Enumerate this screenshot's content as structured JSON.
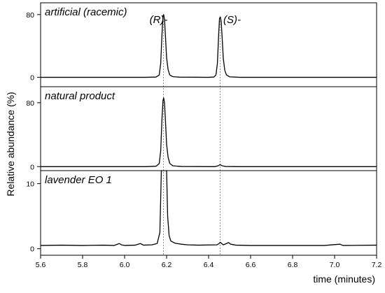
{
  "chart_data": {
    "type": "line",
    "x_label": "time (minutes)",
    "y_label": "Relative abundance (%)",
    "x_range": [
      5.6,
      7.2
    ],
    "x_ticks": [
      "5.6",
      "5.8",
      "6.0",
      "6.2",
      "6.4",
      "6.6",
      "6.8",
      "7.0",
      "7.2"
    ],
    "x_tick_values": [
      5.6,
      5.8,
      6.0,
      6.2,
      6.4,
      6.6,
      6.8,
      7.0,
      7.2
    ],
    "peak_labels": [
      {
        "text": "(R)-",
        "retention_time": 6.185
      },
      {
        "text": "(S)-",
        "retention_time": 6.455
      }
    ],
    "panels": [
      {
        "title": "artificial (racemic)",
        "y_range": [
          -12,
          95
        ],
        "y_ticks": [
          0,
          80
        ],
        "y_tick_labels": [
          "0",
          "80"
        ],
        "trace": [
          [
            5.6,
            0
          ],
          [
            6.1,
            0
          ],
          [
            6.15,
            0.3
          ],
          [
            6.165,
            3
          ],
          [
            6.172,
            18
          ],
          [
            6.178,
            55
          ],
          [
            6.183,
            78
          ],
          [
            6.186,
            80
          ],
          [
            6.19,
            74
          ],
          [
            6.195,
            50
          ],
          [
            6.2,
            25
          ],
          [
            6.207,
            10
          ],
          [
            6.215,
            3
          ],
          [
            6.23,
            0.8
          ],
          [
            6.26,
            0.2
          ],
          [
            6.4,
            0
          ],
          [
            6.425,
            0.3
          ],
          [
            6.435,
            3
          ],
          [
            6.442,
            18
          ],
          [
            6.448,
            55
          ],
          [
            6.452,
            75
          ],
          [
            6.456,
            77
          ],
          [
            6.46,
            71
          ],
          [
            6.465,
            48
          ],
          [
            6.47,
            24
          ],
          [
            6.477,
            9
          ],
          [
            6.485,
            3
          ],
          [
            6.5,
            0.6
          ],
          [
            6.55,
            0
          ],
          [
            7.2,
            0
          ]
        ]
      },
      {
        "title": "natural product",
        "y_range": [
          -5,
          100
        ],
        "y_ticks": [
          0,
          80
        ],
        "y_tick_labels": [
          "0",
          "80"
        ],
        "trace": [
          [
            5.6,
            0
          ],
          [
            6.1,
            0
          ],
          [
            6.15,
            0.5
          ],
          [
            6.165,
            4
          ],
          [
            6.172,
            20
          ],
          [
            6.178,
            60
          ],
          [
            6.183,
            83
          ],
          [
            6.186,
            86
          ],
          [
            6.19,
            80
          ],
          [
            6.195,
            55
          ],
          [
            6.2,
            28
          ],
          [
            6.207,
            12
          ],
          [
            6.215,
            4
          ],
          [
            6.23,
            1
          ],
          [
            6.27,
            0.2
          ],
          [
            6.43,
            0
          ],
          [
            6.445,
            1
          ],
          [
            6.455,
            2.5
          ],
          [
            6.465,
            1
          ],
          [
            6.48,
            0.2
          ],
          [
            6.55,
            0
          ],
          [
            7.2,
            0
          ]
        ]
      },
      {
        "title": "lavender EO 1",
        "y_range": [
          -1,
          12
        ],
        "y_ticks": [
          0,
          10
        ],
        "y_tick_labels": [
          "0",
          "10"
        ],
        "trace": [
          [
            5.6,
            0.5
          ],
          [
            5.7,
            0.55
          ],
          [
            5.8,
            0.5
          ],
          [
            5.9,
            0.55
          ],
          [
            5.95,
            0.5
          ],
          [
            5.975,
            0.8
          ],
          [
            5.985,
            0.6
          ],
          [
            6.0,
            0.5
          ],
          [
            6.05,
            0.55
          ],
          [
            6.075,
            0.8
          ],
          [
            6.09,
            0.55
          ],
          [
            6.13,
            0.6
          ],
          [
            6.155,
            0.8
          ],
          [
            6.168,
            2.5
          ],
          [
            6.175,
            12
          ],
          [
            6.2,
            12
          ],
          [
            6.205,
            5
          ],
          [
            6.212,
            2
          ],
          [
            6.22,
            1.2
          ],
          [
            6.24,
            0.85
          ],
          [
            6.27,
            0.7
          ],
          [
            6.3,
            0.6
          ],
          [
            6.35,
            0.55
          ],
          [
            6.44,
            0.6
          ],
          [
            6.45,
            0.8
          ],
          [
            6.455,
            1
          ],
          [
            6.46,
            0.85
          ],
          [
            6.47,
            0.6
          ],
          [
            6.485,
            0.8
          ],
          [
            6.495,
            0.95
          ],
          [
            6.505,
            0.7
          ],
          [
            6.53,
            0.55
          ],
          [
            6.6,
            0.5
          ],
          [
            6.8,
            0.5
          ],
          [
            6.95,
            0.5
          ],
          [
            7.025,
            0.7
          ],
          [
            7.04,
            0.5
          ],
          [
            7.2,
            0.55
          ]
        ]
      }
    ]
  }
}
